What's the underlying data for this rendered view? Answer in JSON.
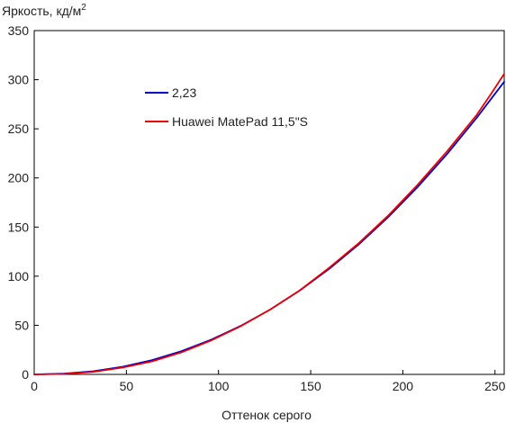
{
  "chart_data": {
    "type": "line",
    "ylabel": "Яркость, кд/м",
    "ylabel_sup": "2",
    "xlabel": "Оттенок серого",
    "xlim": [
      0,
      255
    ],
    "ylim": [
      0,
      350
    ],
    "x_ticks": [
      0,
      50,
      100,
      150,
      200,
      250
    ],
    "y_ticks": [
      0,
      50,
      100,
      150,
      200,
      250,
      300,
      350
    ],
    "grid": false,
    "legend_position": "upper-left inside plot",
    "series": [
      {
        "name": "2,23",
        "color": "#0000cc",
        "x": [
          0,
          16,
          32,
          48,
          64,
          80,
          96,
          112,
          128,
          144,
          160,
          176,
          192,
          208,
          224,
          240,
          255
        ],
        "y": [
          0,
          0.7,
          3.2,
          7.8,
          14.6,
          23.7,
          35.3,
          49.4,
          66.0,
          85.3,
          107.4,
          132.2,
          160.0,
          190.7,
          224.3,
          261.0,
          298.0
        ]
      },
      {
        "name": "Huawei MatePad 11,5\"S",
        "color": "#ee0000",
        "x": [
          0,
          16,
          32,
          48,
          64,
          80,
          96,
          112,
          128,
          144,
          160,
          176,
          192,
          208,
          224,
          240,
          248,
          255
        ],
        "y": [
          0,
          0.5,
          2.6,
          7.0,
          13.3,
          22.5,
          34.5,
          49.0,
          66.0,
          85.5,
          108.5,
          133.5,
          161.5,
          193.0,
          227.0,
          264.0,
          286.0,
          306.0
        ]
      }
    ]
  }
}
